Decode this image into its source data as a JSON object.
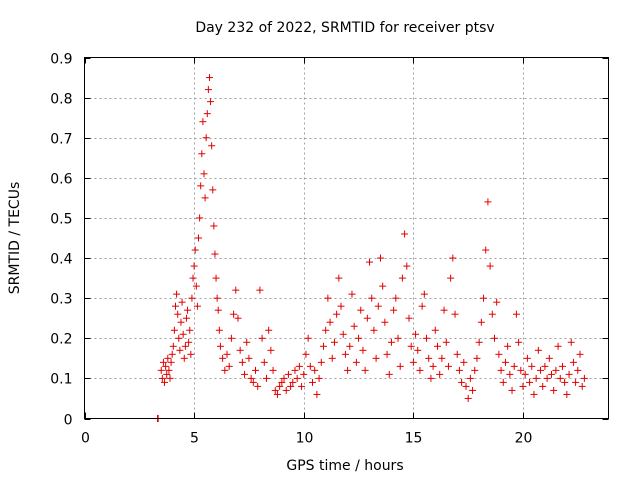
{
  "chart_data": {
    "type": "scatter",
    "title": "Day 232 of 2022, SRMTID for receiver ptsv",
    "xlabel": "GPS time / hours",
    "ylabel": "SRMTID / TECUs",
    "xlim": [
      0,
      23.9
    ],
    "ylim": [
      0,
      0.9
    ],
    "xticks": [
      0,
      5,
      10,
      15,
      20
    ],
    "xtick_labels": [
      "0",
      "5",
      "10",
      "15",
      "20"
    ],
    "yticks": [
      0,
      0.1,
      0.2,
      0.3,
      0.4,
      0.5,
      0.6,
      0.7,
      0.8,
      0.9
    ],
    "ytick_labels": [
      "0",
      "0.1",
      "0.2",
      "0.3",
      "0.4",
      "0.5",
      "0.6",
      "0.7",
      "0.8",
      "0.9"
    ],
    "grid": true,
    "marker": "plus",
    "color": "#e00000",
    "series": [
      {
        "name": "SRMTID",
        "points": [
          [
            3.33,
            0.0
          ],
          [
            3.36,
            0.0
          ],
          [
            3.5,
            0.12
          ],
          [
            3.55,
            0.1
          ],
          [
            3.6,
            0.14
          ],
          [
            3.65,
            0.09
          ],
          [
            3.7,
            0.13
          ],
          [
            3.75,
            0.11
          ],
          [
            3.8,
            0.15
          ],
          [
            3.85,
            0.12
          ],
          [
            3.9,
            0.1
          ],
          [
            3.95,
            0.14
          ],
          [
            4.0,
            0.16
          ],
          [
            4.05,
            0.18
          ],
          [
            4.1,
            0.22
          ],
          [
            4.15,
            0.28
          ],
          [
            4.2,
            0.31
          ],
          [
            4.25,
            0.26
          ],
          [
            4.3,
            0.2
          ],
          [
            4.35,
            0.17
          ],
          [
            4.4,
            0.24
          ],
          [
            4.45,
            0.29
          ],
          [
            4.5,
            0.21
          ],
          [
            4.55,
            0.15
          ],
          [
            4.6,
            0.18
          ],
          [
            4.65,
            0.25
          ],
          [
            4.7,
            0.27
          ],
          [
            4.75,
            0.19
          ],
          [
            4.8,
            0.22
          ],
          [
            4.85,
            0.16
          ],
          [
            4.9,
            0.3
          ],
          [
            4.95,
            0.35
          ],
          [
            5.0,
            0.38
          ],
          [
            5.05,
            0.42
          ],
          [
            5.1,
            0.33
          ],
          [
            5.15,
            0.28
          ],
          [
            5.2,
            0.45
          ],
          [
            5.25,
            0.5
          ],
          [
            5.3,
            0.58
          ],
          [
            5.35,
            0.66
          ],
          [
            5.4,
            0.74
          ],
          [
            5.45,
            0.61
          ],
          [
            5.5,
            0.55
          ],
          [
            5.55,
            0.7
          ],
          [
            5.6,
            0.76
          ],
          [
            5.65,
            0.82
          ],
          [
            5.7,
            0.85
          ],
          [
            5.75,
            0.79
          ],
          [
            5.8,
            0.68
          ],
          [
            5.85,
            0.57
          ],
          [
            5.9,
            0.48
          ],
          [
            5.95,
            0.41
          ],
          [
            6.0,
            0.35
          ],
          [
            6.05,
            0.3
          ],
          [
            6.1,
            0.27
          ],
          [
            6.15,
            0.22
          ],
          [
            6.2,
            0.18
          ],
          [
            6.3,
            0.15
          ],
          [
            6.4,
            0.12
          ],
          [
            6.5,
            0.16
          ],
          [
            6.6,
            0.13
          ],
          [
            6.7,
            0.2
          ],
          [
            6.8,
            0.26
          ],
          [
            6.9,
            0.32
          ],
          [
            7.0,
            0.25
          ],
          [
            7.1,
            0.17
          ],
          [
            7.2,
            0.14
          ],
          [
            7.3,
            0.11
          ],
          [
            7.4,
            0.19
          ],
          [
            7.5,
            0.15
          ],
          [
            7.6,
            0.1
          ],
          [
            7.7,
            0.09
          ],
          [
            7.8,
            0.12
          ],
          [
            7.9,
            0.08
          ],
          [
            8.0,
            0.32
          ],
          [
            8.1,
            0.2
          ],
          [
            8.2,
            0.14
          ],
          [
            8.3,
            0.1
          ],
          [
            8.4,
            0.22
          ],
          [
            8.5,
            0.17
          ],
          [
            8.6,
            0.12
          ],
          [
            8.7,
            0.07
          ],
          [
            8.8,
            0.06
          ],
          [
            8.9,
            0.08
          ],
          [
            9.0,
            0.09
          ],
          [
            9.1,
            0.1
          ],
          [
            9.2,
            0.07
          ],
          [
            9.3,
            0.11
          ],
          [
            9.4,
            0.08
          ],
          [
            9.5,
            0.09
          ],
          [
            9.6,
            0.12
          ],
          [
            9.7,
            0.1
          ],
          [
            9.8,
            0.13
          ],
          [
            9.9,
            0.08
          ],
          [
            10.0,
            0.11
          ],
          [
            10.1,
            0.16
          ],
          [
            10.2,
            0.2
          ],
          [
            10.3,
            0.13
          ],
          [
            10.4,
            0.09
          ],
          [
            10.5,
            0.12
          ],
          [
            10.6,
            0.06
          ],
          [
            10.7,
            0.1
          ],
          [
            10.8,
            0.14
          ],
          [
            10.9,
            0.18
          ],
          [
            11.0,
            0.22
          ],
          [
            11.1,
            0.3
          ],
          [
            11.2,
            0.24
          ],
          [
            11.3,
            0.15
          ],
          [
            11.4,
            0.19
          ],
          [
            11.5,
            0.26
          ],
          [
            11.6,
            0.35
          ],
          [
            11.7,
            0.28
          ],
          [
            11.8,
            0.21
          ],
          [
            11.9,
            0.16
          ],
          [
            12.0,
            0.12
          ],
          [
            12.1,
            0.18
          ],
          [
            12.2,
            0.31
          ],
          [
            12.3,
            0.23
          ],
          [
            12.4,
            0.14
          ],
          [
            12.5,
            0.2
          ],
          [
            12.6,
            0.27
          ],
          [
            12.7,
            0.17
          ],
          [
            12.8,
            0.12
          ],
          [
            12.9,
            0.25
          ],
          [
            13.0,
            0.39
          ],
          [
            13.1,
            0.3
          ],
          [
            13.2,
            0.22
          ],
          [
            13.3,
            0.15
          ],
          [
            13.4,
            0.28
          ],
          [
            13.5,
            0.4
          ],
          [
            13.6,
            0.33
          ],
          [
            13.7,
            0.24
          ],
          [
            13.8,
            0.16
          ],
          [
            13.9,
            0.11
          ],
          [
            14.0,
            0.19
          ],
          [
            14.1,
            0.27
          ],
          [
            14.2,
            0.3
          ],
          [
            14.3,
            0.2
          ],
          [
            14.4,
            0.13
          ],
          [
            14.5,
            0.35
          ],
          [
            14.6,
            0.46
          ],
          [
            14.7,
            0.38
          ],
          [
            14.8,
            0.25
          ],
          [
            14.9,
            0.18
          ],
          [
            15.0,
            0.14
          ],
          [
            15.1,
            0.21
          ],
          [
            15.2,
            0.17
          ],
          [
            15.3,
            0.12
          ],
          [
            15.4,
            0.28
          ],
          [
            15.5,
            0.31
          ],
          [
            15.6,
            0.2
          ],
          [
            15.7,
            0.15
          ],
          [
            15.8,
            0.1
          ],
          [
            15.9,
            0.13
          ],
          [
            16.0,
            0.22
          ],
          [
            16.1,
            0.18
          ],
          [
            16.2,
            0.11
          ],
          [
            16.3,
            0.15
          ],
          [
            16.4,
            0.27
          ],
          [
            16.5,
            0.19
          ],
          [
            16.6,
            0.13
          ],
          [
            16.7,
            0.35
          ],
          [
            16.8,
            0.4
          ],
          [
            16.9,
            0.26
          ],
          [
            17.0,
            0.16
          ],
          [
            17.1,
            0.12
          ],
          [
            17.2,
            0.09
          ],
          [
            17.3,
            0.14
          ],
          [
            17.4,
            0.08
          ],
          [
            17.5,
            0.05
          ],
          [
            17.6,
            0.1
          ],
          [
            17.7,
            0.07
          ],
          [
            17.8,
            0.12
          ],
          [
            17.9,
            0.15
          ],
          [
            18.0,
            0.19
          ],
          [
            18.1,
            0.24
          ],
          [
            18.2,
            0.3
          ],
          [
            18.3,
            0.42
          ],
          [
            18.4,
            0.54
          ],
          [
            18.5,
            0.38
          ],
          [
            18.6,
            0.26
          ],
          [
            18.7,
            0.2
          ],
          [
            18.8,
            0.29
          ],
          [
            18.9,
            0.16
          ],
          [
            19.0,
            0.12
          ],
          [
            19.1,
            0.09
          ],
          [
            19.2,
            0.14
          ],
          [
            19.3,
            0.18
          ],
          [
            19.4,
            0.11
          ],
          [
            19.5,
            0.07
          ],
          [
            19.6,
            0.13
          ],
          [
            19.7,
            0.26
          ],
          [
            19.8,
            0.19
          ],
          [
            19.9,
            0.12
          ],
          [
            20.0,
            0.08
          ],
          [
            20.1,
            0.11
          ],
          [
            20.2,
            0.15
          ],
          [
            20.3,
            0.09
          ],
          [
            20.4,
            0.13
          ],
          [
            20.5,
            0.06
          ],
          [
            20.6,
            0.1
          ],
          [
            20.7,
            0.17
          ],
          [
            20.8,
            0.12
          ],
          [
            20.9,
            0.08
          ],
          [
            21.0,
            0.13
          ],
          [
            21.1,
            0.1
          ],
          [
            21.2,
            0.15
          ],
          [
            21.3,
            0.11
          ],
          [
            21.4,
            0.07
          ],
          [
            21.5,
            0.12
          ],
          [
            21.6,
            0.18
          ],
          [
            21.7,
            0.1
          ],
          [
            21.8,
            0.13
          ],
          [
            21.9,
            0.09
          ],
          [
            22.0,
            0.06
          ],
          [
            22.1,
            0.11
          ],
          [
            22.2,
            0.19
          ],
          [
            22.3,
            0.14
          ],
          [
            22.4,
            0.09
          ],
          [
            22.5,
            0.12
          ],
          [
            22.6,
            0.16
          ],
          [
            22.7,
            0.08
          ],
          [
            22.8,
            0.1
          ]
        ]
      }
    ]
  }
}
